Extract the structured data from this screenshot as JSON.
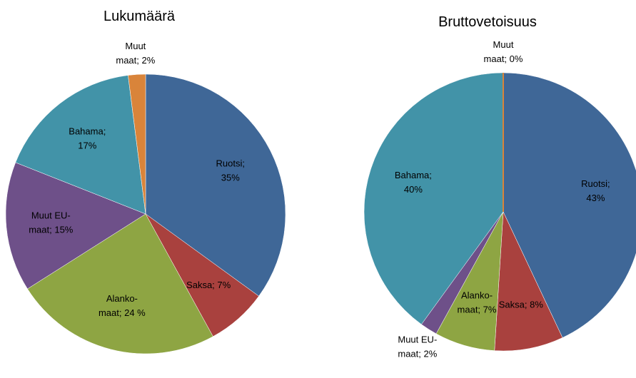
{
  "chart_data": [
    {
      "type": "pie",
      "title": "Lukumäärä",
      "values": [
        35,
        7,
        24,
        15,
        17,
        2
      ],
      "value_labels": [
        "Ruotsi;\n35%",
        "Saksa; 7%",
        "Alanko-\nmaat; 24 %",
        "Muut EU-\nmaat; 15%",
        "Bahama;\n17%",
        "Muut\nmaat; 2%"
      ],
      "colors": [
        "#3f6797",
        "#a9413e",
        "#8ea543",
        "#6e5089",
        "#4293a8",
        "#d9843a"
      ]
    },
    {
      "type": "pie",
      "title": "Bruttovetoisuus",
      "values": [
        43,
        8,
        7,
        2,
        40,
        0
      ],
      "value_labels": [
        "Ruotsi;\n43%",
        "Saksa; 8%",
        "Alanko-\nmaat; 7%",
        "Muut EU-\nmaat; 2%",
        "Bahama;\n40%",
        "Muut\nmaat; 0%"
      ],
      "colors": [
        "#3f6797",
        "#a9413e",
        "#8ea543",
        "#6e5089",
        "#4293a8",
        "#d9843a"
      ]
    }
  ]
}
